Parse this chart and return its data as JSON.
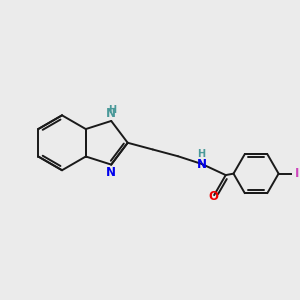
{
  "background_color": "#ebebeb",
  "bond_color": "#1a1a1a",
  "bond_width": 1.4,
  "N_color": "#0000ee",
  "NH_color": "#4a9999",
  "O_color": "#ee0000",
  "I_color": "#cc44bb",
  "font_size_N": 8.5,
  "font_size_H": 7.0,
  "font_size_I": 8.5,
  "font_size_O": 8.5,
  "xlim": [
    0,
    10
  ],
  "ylim": [
    0,
    10
  ]
}
